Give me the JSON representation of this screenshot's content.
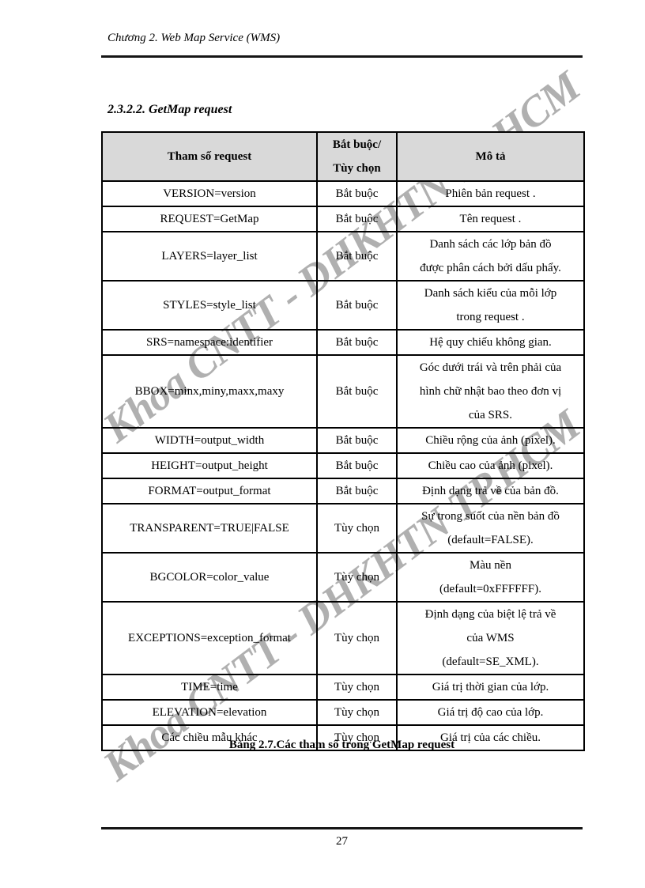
{
  "page": {
    "header_title": "Chương 2. Web Map Service (WMS)",
    "section_heading": "2.3.2.2. GetMap request",
    "caption": "Bảng 2.7.Các tham số trong GetMap request",
    "page_number": "27",
    "watermark": "Khoa CNTT - DHKHTN TP.HCM",
    "colors": {
      "header_row_bg": "#d9d9d9",
      "watermark_gray": "#919191",
      "border": "#000000",
      "page_bg": "#ffffff"
    }
  },
  "table": {
    "headers": {
      "param": "Tham số request",
      "required": [
        "Bắt buộc/",
        "Tùy chọn"
      ],
      "description": "Mô tả"
    },
    "rows": [
      {
        "param": "VERSION=version",
        "required": "Bắt buộc",
        "desc": [
          "Phiên bản request ."
        ]
      },
      {
        "param": "REQUEST=GetMap",
        "required": "Bắt buộc",
        "desc": [
          "Tên request ."
        ]
      },
      {
        "param": "LAYERS=layer_list",
        "required": "Bắt buộc",
        "desc": [
          "Danh sách các lớp bản đồ",
          "được phân cách bởi dấu phẩy."
        ]
      },
      {
        "param": "STYLES=style_list",
        "required": "Bắt buộc",
        "desc": [
          "Danh sách kiểu của mỗi lớp",
          "trong request ."
        ]
      },
      {
        "param": "SRS=namespace:identifier",
        "required": "Bắt buộc",
        "desc": [
          "Hệ quy chiếu không gian."
        ]
      },
      {
        "param": "BBOX=minx,miny,maxx,maxy",
        "required": "Bắt buộc",
        "desc": [
          "Góc dưới trái và trên phải của",
          "hình chữ nhật bao theo đơn vị",
          "của SRS."
        ]
      },
      {
        "param": "WIDTH=output_width",
        "required": "Bắt buộc",
        "desc": [
          "Chiều rộng của ảnh (pixel)."
        ]
      },
      {
        "param": "HEIGHT=output_height",
        "required": "Bắt buộc",
        "desc": [
          "Chiều cao của ảnh (pixel)."
        ]
      },
      {
        "param": "FORMAT=output_format",
        "required": "Bắt buộc",
        "desc": [
          "Định dạng trả về của bản đồ."
        ]
      },
      {
        "param": "TRANSPARENT=TRUE|FALSE",
        "required": "Tùy chọn",
        "desc": [
          "Sự trong suốt của nền bản đồ",
          "(default=FALSE)."
        ]
      },
      {
        "param": "BGCOLOR=color_value",
        "required": "Tùy chọn",
        "desc": [
          "Màu nền",
          "(default=0xFFFFFF)."
        ]
      },
      {
        "param": "EXCEPTIONS=exception_format",
        "required": "Tùy chọn",
        "desc": [
          "Định dạng của biệt lệ trả về",
          "của WMS",
          "(default=SE_XML)."
        ]
      },
      {
        "param": "TIME=time",
        "required": "Tùy chọn",
        "desc": [
          "Giá trị thời gian của lớp."
        ]
      },
      {
        "param": "ELEVATION=elevation",
        "required": "Tùy chọn",
        "desc": [
          "Giá trị độ cao của lớp."
        ]
      },
      {
        "param": "Các chiều mẫu khác",
        "required": "Tùy chọn",
        "desc": [
          "Giá trị của các chiều."
        ]
      }
    ]
  }
}
